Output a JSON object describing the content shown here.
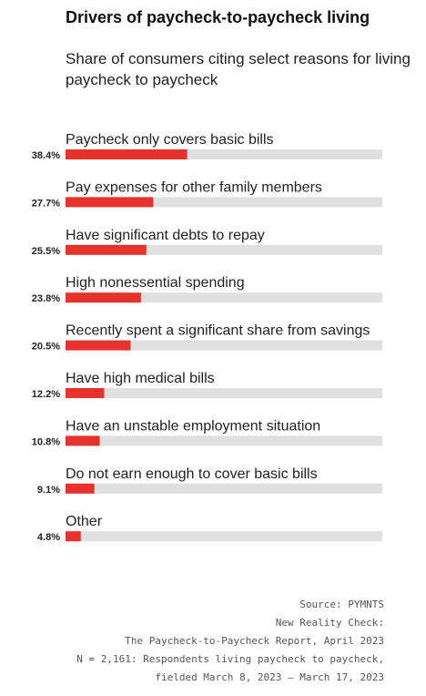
{
  "chart_data": {
    "type": "bar",
    "orientation": "horizontal",
    "title": "Drivers of paycheck-to-paycheck living",
    "subtitle": "Share of consumers citing select reasons for living paycheck to paycheck",
    "categories": [
      "Paycheck only covers basic bills",
      "Pay expenses for other family members",
      "Have significant debts to repay",
      "High nonessential spending",
      "Recently spent a significant share from savings",
      "Have high medical bills",
      "Have an unstable employment situation",
      "Do not earn enough to cover basic bills",
      "Other"
    ],
    "values": [
      38.4,
      27.7,
      25.5,
      23.8,
      20.5,
      12.2,
      10.8,
      9.1,
      4.8
    ],
    "value_labels": [
      "38.4%",
      "27.7%",
      "25.5%",
      "23.8%",
      "20.5%",
      "12.2%",
      "10.8%",
      "9.1%",
      "4.8%"
    ],
    "xlim": [
      0,
      100
    ],
    "grid": false,
    "legend": "none",
    "colors": {
      "bar": "#e5322d",
      "track": "#e0e0e0",
      "label": "#222222"
    }
  },
  "source": [
    "Source: PYMNTS",
    "New Reality Check:",
    "The Paycheck-to-Paycheck Report, April 2023",
    "N = 2,161: Respondents living paycheck to paycheck,",
    "fielded March 8, 2023 – March 17, 2023"
  ]
}
